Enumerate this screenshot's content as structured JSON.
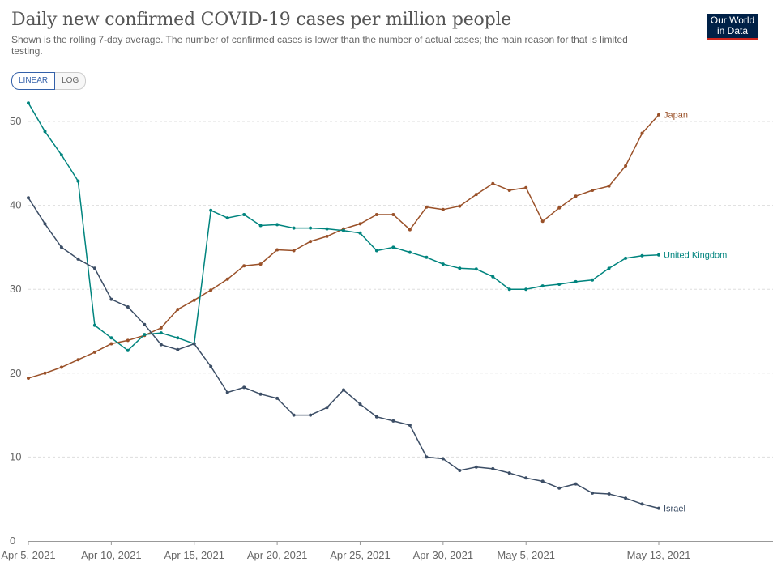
{
  "header": {
    "title": "Daily new confirmed COVID-19 cases per million people",
    "subtitle": "Shown is the rolling 7-day average. The number of confirmed cases is lower than the number of actual cases; the main reason for that is limited testing.",
    "logo_line1": "Our World",
    "logo_line2": "in Data"
  },
  "controls": {
    "linear_label": "LINEAR",
    "log_label": "LOG"
  },
  "chart_data": {
    "type": "line",
    "title": "Daily new confirmed COVID-19 cases per million people",
    "xlabel": "",
    "ylabel": "",
    "ylim": [
      0,
      52
    ],
    "yticks": [
      0,
      10,
      20,
      30,
      40,
      50
    ],
    "grid": true,
    "scale": "linear",
    "x": [
      "2021-04-05",
      "2021-04-06",
      "2021-04-07",
      "2021-04-08",
      "2021-04-09",
      "2021-04-10",
      "2021-04-11",
      "2021-04-12",
      "2021-04-13",
      "2021-04-14",
      "2021-04-15",
      "2021-04-16",
      "2021-04-17",
      "2021-04-18",
      "2021-04-19",
      "2021-04-20",
      "2021-04-21",
      "2021-04-22",
      "2021-04-23",
      "2021-04-24",
      "2021-04-25",
      "2021-04-26",
      "2021-04-27",
      "2021-04-28",
      "2021-04-29",
      "2021-04-30",
      "2021-05-01",
      "2021-05-02",
      "2021-05-03",
      "2021-05-04",
      "2021-05-05",
      "2021-05-06",
      "2021-05-07",
      "2021-05-08",
      "2021-05-09",
      "2021-05-10",
      "2021-05-11",
      "2021-05-12",
      "2021-05-13"
    ],
    "xticks": [
      {
        "date": "2021-04-05",
        "label": "Apr 5, 2021"
      },
      {
        "date": "2021-04-10",
        "label": "Apr 10, 2021"
      },
      {
        "date": "2021-04-15",
        "label": "Apr 15, 2021"
      },
      {
        "date": "2021-04-20",
        "label": "Apr 20, 2021"
      },
      {
        "date": "2021-04-25",
        "label": "Apr 25, 2021"
      },
      {
        "date": "2021-04-30",
        "label": "Apr 30, 2021"
      },
      {
        "date": "2021-05-05",
        "label": "May 5, 2021"
      },
      {
        "date": "2021-05-13",
        "label": "May 13, 2021"
      }
    ],
    "series": [
      {
        "name": "Japan",
        "color": "#9a5129",
        "values": [
          19.4,
          20.0,
          20.7,
          21.6,
          22.5,
          23.5,
          23.9,
          24.5,
          25.4,
          27.6,
          28.7,
          29.9,
          31.2,
          32.8,
          33.0,
          34.7,
          34.6,
          35.7,
          36.3,
          37.2,
          37.8,
          38.9,
          38.9,
          37.1,
          39.8,
          39.5,
          39.9,
          41.3,
          42.6,
          41.8,
          42.1,
          38.1,
          39.7,
          41.1,
          41.8,
          42.3,
          44.7,
          48.6,
          50.8
        ]
      },
      {
        "name": "United Kingdom",
        "color": "#00847e",
        "values": [
          52.2,
          48.8,
          46.0,
          42.9,
          25.7,
          24.2,
          22.7,
          24.6,
          24.8,
          24.2,
          23.5,
          39.4,
          38.5,
          38.9,
          37.6,
          37.7,
          37.3,
          37.3,
          37.2,
          37.0,
          36.7,
          34.6,
          35.0,
          34.4,
          33.8,
          33.0,
          32.5,
          32.4,
          31.5,
          30.0,
          30.0,
          30.4,
          30.6,
          30.9,
          31.1,
          32.5,
          33.7,
          34.0,
          34.1
        ]
      },
      {
        "name": "Israel",
        "color": "#3c4e66",
        "values": [
          40.9,
          37.8,
          35.0,
          33.6,
          32.5,
          28.8,
          27.9,
          25.8,
          23.4,
          22.8,
          23.5,
          20.8,
          17.7,
          18.3,
          17.5,
          17.0,
          15.0,
          15.0,
          15.9,
          18.0,
          16.3,
          14.8,
          14.3,
          13.8,
          10.0,
          9.8,
          8.4,
          8.8,
          8.6,
          8.1,
          7.5,
          7.1,
          6.3,
          6.8,
          5.7,
          5.6,
          5.1,
          4.4,
          3.9
        ]
      }
    ]
  }
}
